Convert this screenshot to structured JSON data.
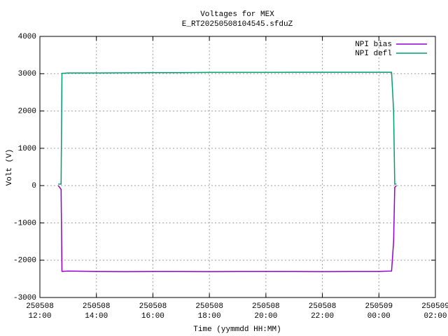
{
  "chart_data": {
    "type": "line",
    "title": "Voltages for MEX",
    "subtitle": "E_RT20250508104545.sfduZ",
    "xlabel": "Time (yymmdd HH:MM)",
    "ylabel": "Volt (V)",
    "x": [
      12.65,
      12.75,
      12.78,
      13,
      14,
      15,
      16,
      17,
      18,
      19,
      20,
      21,
      22,
      23,
      24,
      24.45,
      24.52,
      24.56,
      24.62
    ],
    "series": [
      {
        "name": "NPI bias",
        "color": "#9400d3",
        "values": [
          0,
          -100,
          -2300,
          -2290,
          -2300,
          -2305,
          -2300,
          -2300,
          -2305,
          -2300,
          -2300,
          -2300,
          -2305,
          -2300,
          -2300,
          -2290,
          -1500,
          -50,
          0
        ]
      },
      {
        "name": "NPI defl",
        "color": "#009e73",
        "values": [
          40,
          40,
          3010,
          3020,
          3020,
          3025,
          3030,
          3030,
          3035,
          3035,
          3035,
          3040,
          3040,
          3040,
          3040,
          3040,
          2000,
          40,
          40
        ]
      }
    ],
    "xlim": [
      12,
      26
    ],
    "xticks": [
      {
        "value": 12,
        "label": [
          "250508",
          "12:00"
        ]
      },
      {
        "value": 14,
        "label": [
          "250508",
          "14:00"
        ]
      },
      {
        "value": 16,
        "label": [
          "250508",
          "16:00"
        ]
      },
      {
        "value": 18,
        "label": [
          "250508",
          "18:00"
        ]
      },
      {
        "value": 20,
        "label": [
          "250508",
          "20:00"
        ]
      },
      {
        "value": 22,
        "label": [
          "250508",
          "22:00"
        ]
      },
      {
        "value": 24,
        "label": [
          "250509",
          "00:00"
        ]
      },
      {
        "value": 26,
        "label": [
          "250509",
          "02:00"
        ]
      }
    ],
    "ylim": [
      -3000,
      4000
    ],
    "yticks": [
      -3000,
      -2000,
      -1000,
      0,
      1000,
      2000,
      3000,
      4000
    ],
    "grid": true,
    "legend": "top-right"
  }
}
